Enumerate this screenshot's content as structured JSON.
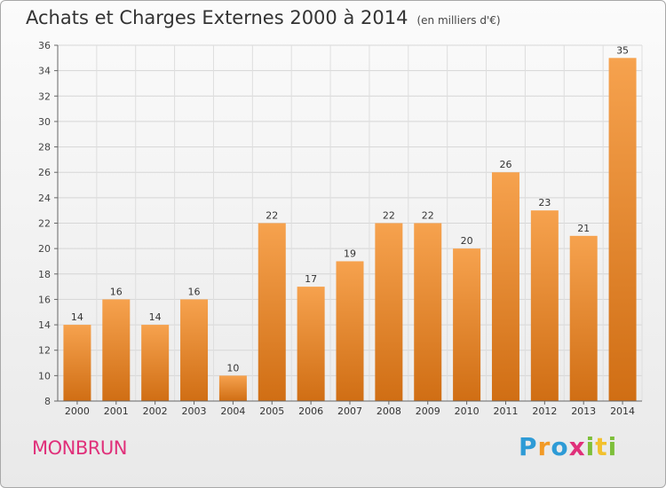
{
  "header": {
    "title": "Achats et Charges Externes 2000 à 2014",
    "subtitle": "(en milliers d'€)"
  },
  "footer": {
    "commune": "MONBRUN",
    "brand": "Proxiti"
  },
  "colors": {
    "bar_light": "#f6a24e",
    "bar_dark": "#d06e14",
    "commune": "#e0307a"
  },
  "chart_data": {
    "type": "bar",
    "title": "Achats et Charges Externes 2000 à 2014",
    "subtitle": "(en milliers d'€)",
    "xlabel": "",
    "ylabel": "",
    "categories": [
      "2000",
      "2001",
      "2002",
      "2003",
      "2004",
      "2005",
      "2006",
      "2007",
      "2008",
      "2009",
      "2010",
      "2011",
      "2012",
      "2013",
      "2014"
    ],
    "values": [
      14,
      16,
      14,
      16,
      10,
      22,
      17,
      19,
      22,
      22,
      20,
      26,
      23,
      21,
      35
    ],
    "ylim": [
      8,
      36
    ],
    "yticks": [
      8,
      10,
      12,
      14,
      16,
      18,
      20,
      22,
      24,
      26,
      28,
      30,
      32,
      34,
      36
    ],
    "grid": true,
    "data_labels": true
  }
}
